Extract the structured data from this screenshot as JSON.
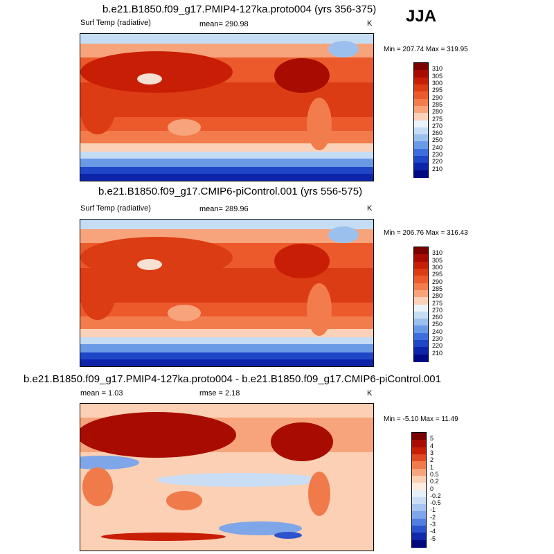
{
  "season": "JJA",
  "panels": [
    {
      "title": "b.e21.B1850.f09_g17.PMIP4-127ka.proto004 (yrs 356-375)",
      "left_label": "Surf Temp (radiative)",
      "center_label": "mean= 290.98",
      "units": "K",
      "minmax": "Min = 207.74 Max = 319.95",
      "colorbar": {
        "labels": [
          "310",
          "305",
          "300",
          "295",
          "290",
          "285",
          "280",
          "275",
          "270",
          "260",
          "250",
          "240",
          "230",
          "220",
          "210"
        ],
        "colors": [
          "#7a0000",
          "#a80c00",
          "#c81e05",
          "#dc3c14",
          "#ec5a2c",
          "#f27c4c",
          "#f7a47c",
          "#fbd2b8",
          "#eaf3fb",
          "#c5dcf5",
          "#9cc0ee",
          "#6a9ae6",
          "#3f6edc",
          "#1f46c6",
          "#0d24a8",
          "#000a82"
        ]
      }
    },
    {
      "title": "b.e21.B1850.f09_g17.CMIP6-piControl.001 (yrs 556-575)",
      "left_label": "Surf Temp (radiative)",
      "center_label": "mean= 289.96",
      "units": "K",
      "minmax": "Min = 206.76 Max = 316.43",
      "colorbar": {
        "labels": [
          "310",
          "305",
          "300",
          "295",
          "290",
          "285",
          "280",
          "275",
          "270",
          "260",
          "250",
          "240",
          "230",
          "220",
          "210"
        ],
        "colors": [
          "#7a0000",
          "#a80c00",
          "#c81e05",
          "#dc3c14",
          "#ec5a2c",
          "#f27c4c",
          "#f7a47c",
          "#fbd2b8",
          "#eaf3fb",
          "#c5dcf5",
          "#9cc0ee",
          "#6a9ae6",
          "#3f6edc",
          "#1f46c6",
          "#0d24a8",
          "#000a82"
        ]
      }
    },
    {
      "title": "b.e21.B1850.f09_g17.PMIP4-127ka.proto004 - b.e21.B1850.f09_g17.CMIP6-piControl.001",
      "left_label": "mean =   1.03",
      "center_label": "rmse =   2.18",
      "units": "K",
      "minmax": "Min =  -5.10 Max =  11.49",
      "colorbar": {
        "labels": [
          "5",
          "4",
          "3",
          "2",
          "1",
          "0.5",
          "0.2",
          "0",
          "-0.2",
          "-0.5",
          "-1",
          "-2",
          "-3",
          "-4",
          "-5"
        ],
        "colors": [
          "#7a0000",
          "#a80c00",
          "#c81e05",
          "#e04a20",
          "#f07a4a",
          "#f7a47c",
          "#fbd0b4",
          "#fdecdf",
          "#e6f0fb",
          "#c9ddf5",
          "#a6c4ef",
          "#7ea6e8",
          "#527ee0",
          "#2c52cc",
          "#1028aa",
          "#00087c"
        ]
      }
    }
  ]
}
